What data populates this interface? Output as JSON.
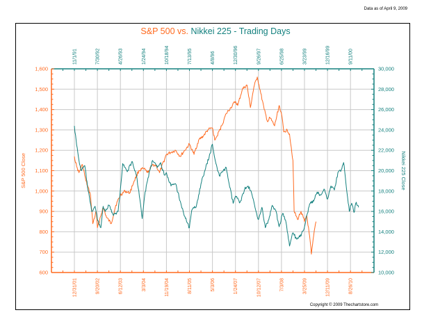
{
  "header": {
    "data_as_of": "Data as of April 9, 2009",
    "copyright": "Copyright © 2009 Thechartstore.com"
  },
  "colors": {
    "sp500": "#FF6A1F",
    "nikkei": "#13807E",
    "grid": "#C8C8C8",
    "frame": "#000000"
  },
  "chart_data": {
    "type": "line",
    "title": "S&P 500 vs. Nikkei 225 - Trading Days",
    "title_parts": [
      {
        "text": "S&P 500 vs. ",
        "series": "sp500"
      },
      {
        "text": "Nikkei 225 - Trading Days",
        "series": "nikkei"
      }
    ],
    "x_axis_bottom": {
      "label": "",
      "series": "sp500",
      "ticks": [
        "12/31/01",
        "9/20/02",
        "6/12/03",
        "3/3/04",
        "11/19/04",
        "8/11/05",
        "5/3/06",
        "1/24/07",
        "10/12/07",
        "7/3/08",
        "3/25/09",
        "12/11/09",
        "8/26/10"
      ]
    },
    "x_axis_top": {
      "label": "",
      "series": "nikkei",
      "ticks": [
        "11/1/91",
        "7/30/92",
        "4/26/93",
        "1/24/94",
        "10/18/94",
        "7/13/95",
        "4/8/96",
        "12/30/96",
        "9/26/97",
        "6/25/98",
        "3/23/99",
        "12/16/99",
        "9/11/00"
      ]
    },
    "y_axis_left": {
      "label": "S&P 500 Close",
      "ylim": [
        600,
        1600
      ],
      "ticks": [
        "600",
        "700",
        "800",
        "900",
        "1,000",
        "1,100",
        "1,200",
        "1,300",
        "1,400",
        "1,500",
        "1,600"
      ]
    },
    "y_axis_right": {
      "label": "Nikkei 225 Close",
      "ylim": [
        10000,
        30000
      ],
      "ticks": [
        "10,000",
        "12,000",
        "14,000",
        "16,000",
        "18,000",
        "20,000",
        "22,000",
        "24,000",
        "26,000",
        "28,000",
        "30,000"
      ]
    },
    "x_units": "tick index (0 = first labeled date, 12 = last labeled date)",
    "xlim": [
      -1,
      13
    ],
    "grid": true,
    "series": [
      {
        "name": "S&P 500",
        "key": "sp500",
        "axis": "left",
        "x": [
          0,
          0.1,
          0.2,
          0.35,
          0.5,
          0.7,
          0.8,
          0.95,
          1.0,
          1.1,
          1.25,
          1.4,
          1.6,
          1.8,
          2.0,
          2.2,
          2.4,
          2.6,
          2.8,
          3.0,
          3.2,
          3.4,
          3.55,
          3.7,
          4.0,
          4.2,
          4.4,
          4.6,
          4.8,
          5.0,
          5.2,
          5.4,
          5.6,
          5.8,
          6.0,
          6.1,
          6.2,
          6.4,
          6.6,
          6.8,
          7.0,
          7.1,
          7.3,
          7.5,
          7.65,
          7.8,
          7.95,
          8.1,
          8.25,
          8.4,
          8.5,
          8.7,
          8.9,
          9.0,
          9.1,
          9.25,
          9.35,
          9.5,
          9.55,
          9.7,
          9.85,
          10.0,
          10.1,
          10.25,
          10.3,
          10.45,
          10.5
        ],
        "values": [
          1170,
          1120,
          1090,
          1130,
          1050,
          980,
          840,
          900,
          820,
          860,
          920,
          870,
          840,
          930,
          980,
          1000,
          990,
          1050,
          1100,
          1110,
          1090,
          1130,
          1125,
          1090,
          1180,
          1190,
          1200,
          1170,
          1200,
          1230,
          1180,
          1250,
          1270,
          1300,
          1310,
          1250,
          1270,
          1320,
          1380,
          1410,
          1440,
          1420,
          1500,
          1520,
          1410,
          1510,
          1560,
          1480,
          1400,
          1340,
          1360,
          1320,
          1420,
          1380,
          1290,
          1300,
          1280,
          1150,
          900,
          860,
          900,
          850,
          880,
          750,
          690,
          820,
          850
        ]
      },
      {
        "name": "Nikkei 225",
        "key": "nikkei",
        "axis": "right",
        "x": [
          0,
          0.1,
          0.2,
          0.3,
          0.45,
          0.6,
          0.75,
          0.9,
          1.0,
          1.15,
          1.25,
          1.35,
          1.5,
          1.7,
          1.9,
          2.0,
          2.1,
          2.3,
          2.5,
          2.7,
          2.8,
          2.95,
          3.05,
          3.2,
          3.4,
          3.6,
          3.75,
          3.9,
          4.0,
          4.2,
          4.4,
          4.6,
          4.8,
          4.9,
          5.0,
          5.1,
          5.3,
          5.5,
          5.7,
          5.9,
          6.0,
          6.15,
          6.3,
          6.45,
          6.6,
          6.75,
          6.9,
          7.0,
          7.2,
          7.4,
          7.55,
          7.7,
          7.85,
          8.0,
          8.15,
          8.3,
          8.45,
          8.6,
          8.75,
          8.9,
          9.05,
          9.2,
          9.35,
          9.5,
          9.65,
          9.8,
          9.95,
          10.1,
          10.25,
          10.4,
          10.55,
          10.7,
          10.85,
          11.0,
          11.15,
          11.3,
          11.45,
          11.6,
          11.7,
          11.75,
          11.85,
          11.95,
          12.05,
          12.15,
          12.25,
          12.35
        ],
        "values": [
          24400,
          22500,
          21000,
          20000,
          20500,
          18000,
          16000,
          16500,
          15200,
          14400,
          16500,
          16000,
          16600,
          15600,
          16000,
          18200,
          20700,
          19900,
          20900,
          19500,
          18000,
          15300,
          17500,
          19300,
          21000,
          20300,
          20800,
          19600,
          19800,
          18500,
          18700,
          17000,
          15500,
          14900,
          14400,
          16100,
          16500,
          18700,
          20200,
          21700,
          22600,
          20700,
          19500,
          19900,
          20300,
          18400,
          16800,
          17500,
          16900,
          18200,
          18500,
          17800,
          16400,
          15200,
          16400,
          14400,
          15200,
          16600,
          16100,
          14500,
          15800,
          14900,
          12600,
          13900,
          13300,
          13500,
          14100,
          15600,
          16800,
          17000,
          17900,
          17600,
          18200,
          17200,
          18500,
          18100,
          19800,
          20100,
          20800,
          19900,
          17800,
          16000,
          16800,
          15900,
          16900,
          16400
        ]
      }
    ]
  }
}
